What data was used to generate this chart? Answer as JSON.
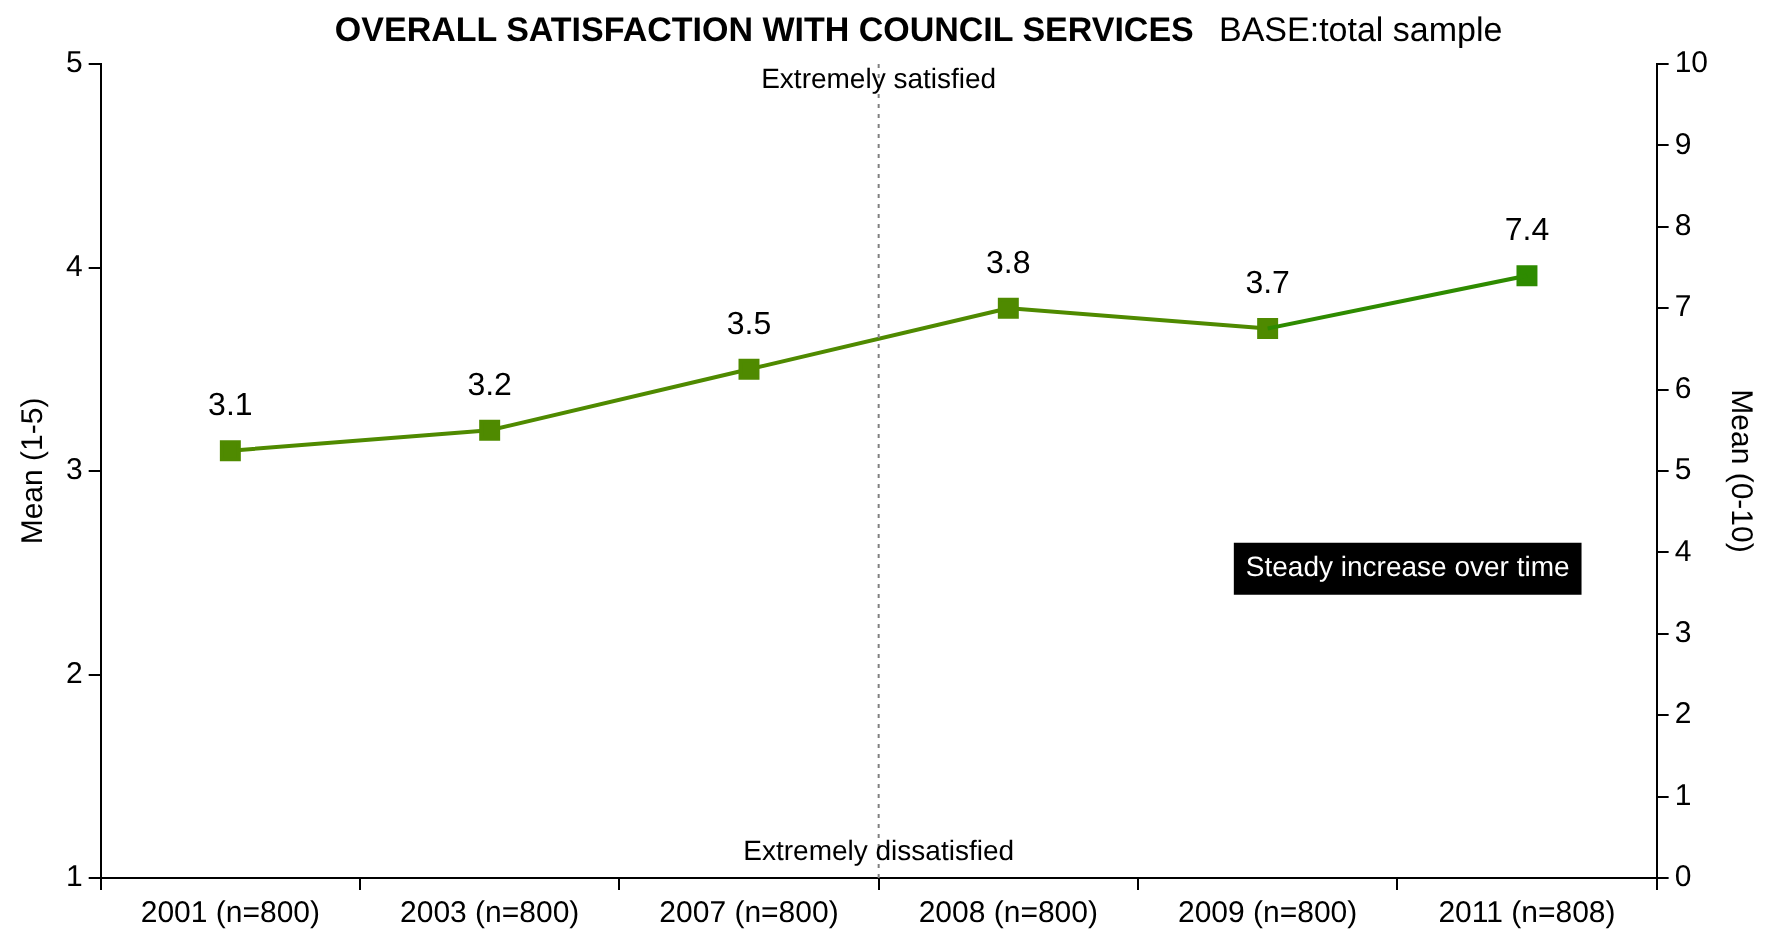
{
  "chart_data": {
    "type": "line",
    "title": "OVERALL SATISFACTION WITH COUNCIL SERVICES",
    "subtitle": "BASE:total sample",
    "ylabel": "Mean (1-5)",
    "y2label": "Mean (0-10)",
    "categories": [
      "2001 (n=800)",
      "2003 (n=800)",
      "2007 (n=800)",
      "2008 (n=800)",
      "2009 (n=800)",
      "2011 (n=808)"
    ],
    "series": [
      {
        "color": "#4f8a00",
        "values": [
          3.1,
          3.2,
          3.5,
          3.8,
          3.7,
          null
        ]
      },
      {
        "color": "#2e8b00",
        "axis": "y2",
        "values": [
          null,
          null,
          null,
          null,
          null,
          7.4
        ]
      }
    ],
    "ylim": [
      1,
      5
    ],
    "yticks": [
      1,
      2,
      3,
      4,
      5
    ],
    "y2lim": [
      0,
      10
    ],
    "y2ticks": [
      0,
      1,
      2,
      3,
      4,
      5,
      6,
      7,
      8,
      9,
      10
    ],
    "annotations": [
      "Extremely satisfied",
      "Extremely dissatisfied",
      "Steady increase over time"
    ],
    "data_labels": true,
    "grid": false,
    "legend": false,
    "marker": "square",
    "line_style": "solid"
  }
}
